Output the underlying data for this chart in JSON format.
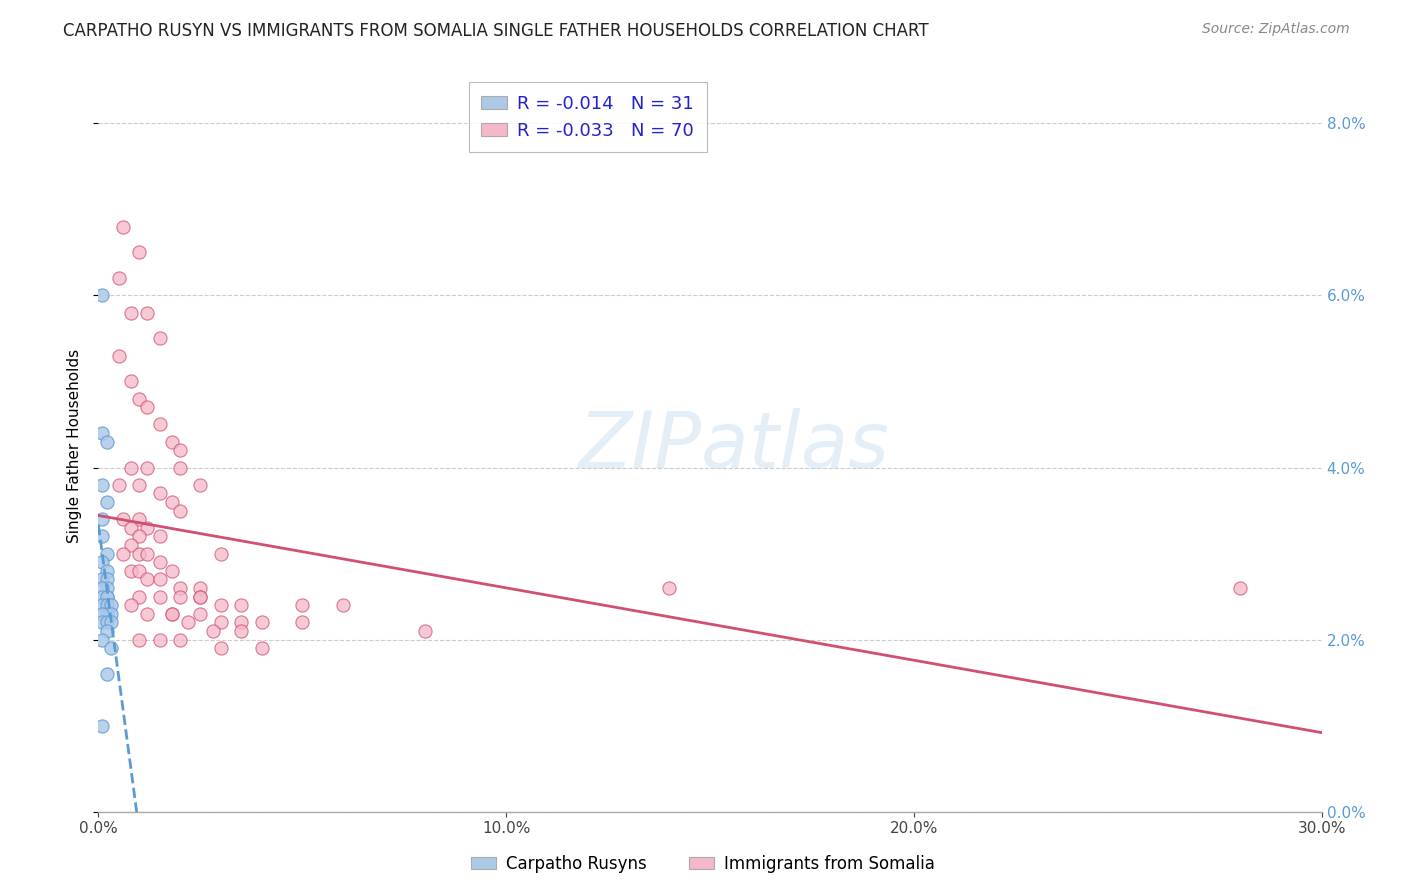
{
  "title": "CARPATHO RUSYN VS IMMIGRANTS FROM SOMALIA SINGLE FATHER HOUSEHOLDS CORRELATION CHART",
  "source": "Source: ZipAtlas.com",
  "ylabel": "Single Father Households",
  "legend_label1": "Carpatho Rusyns",
  "legend_label2": "Immigrants from Somalia",
  "r1": -0.014,
  "n1": 31,
  "r2": -0.033,
  "n2": 70,
  "color1": "#adc9e8",
  "color2": "#f5b8c8",
  "trendline1_color": "#5b9bd5",
  "trendline2_color": "#d05070",
  "xmin": 0.0,
  "xmax": 0.3,
  "ymin": 0.0,
  "ymax": 0.085,
  "blue_scatter_x": [
    0.001,
    0.001,
    0.002,
    0.001,
    0.002,
    0.001,
    0.001,
    0.002,
    0.001,
    0.002,
    0.001,
    0.002,
    0.002,
    0.001,
    0.002,
    0.001,
    0.002,
    0.001,
    0.002,
    0.003,
    0.002,
    0.003,
    0.001,
    0.001,
    0.002,
    0.003,
    0.002,
    0.001,
    0.003,
    0.002,
    0.001
  ],
  "blue_scatter_y": [
    0.06,
    0.044,
    0.043,
    0.038,
    0.036,
    0.034,
    0.032,
    0.03,
    0.029,
    0.028,
    0.027,
    0.027,
    0.026,
    0.026,
    0.025,
    0.025,
    0.025,
    0.024,
    0.024,
    0.024,
    0.023,
    0.023,
    0.023,
    0.022,
    0.022,
    0.022,
    0.021,
    0.02,
    0.019,
    0.016,
    0.01
  ],
  "pink_scatter_x": [
    0.006,
    0.01,
    0.005,
    0.008,
    0.012,
    0.015,
    0.005,
    0.008,
    0.01,
    0.012,
    0.015,
    0.018,
    0.02,
    0.008,
    0.012,
    0.005,
    0.01,
    0.015,
    0.018,
    0.02,
    0.006,
    0.01,
    0.008,
    0.012,
    0.015,
    0.01,
    0.008,
    0.006,
    0.01,
    0.012,
    0.015,
    0.018,
    0.008,
    0.01,
    0.012,
    0.015,
    0.02,
    0.025,
    0.01,
    0.015,
    0.02,
    0.025,
    0.03,
    0.035,
    0.008,
    0.012,
    0.018,
    0.025,
    0.03,
    0.035,
    0.04,
    0.02,
    0.025,
    0.03,
    0.025,
    0.05,
    0.018,
    0.022,
    0.028,
    0.035,
    0.01,
    0.015,
    0.02,
    0.03,
    0.04,
    0.05,
    0.06,
    0.08,
    0.14,
    0.28
  ],
  "pink_scatter_y": [
    0.068,
    0.065,
    0.062,
    0.058,
    0.058,
    0.055,
    0.053,
    0.05,
    0.048,
    0.047,
    0.045,
    0.043,
    0.042,
    0.04,
    0.04,
    0.038,
    0.038,
    0.037,
    0.036,
    0.035,
    0.034,
    0.034,
    0.033,
    0.033,
    0.032,
    0.032,
    0.031,
    0.03,
    0.03,
    0.03,
    0.029,
    0.028,
    0.028,
    0.028,
    0.027,
    0.027,
    0.026,
    0.026,
    0.025,
    0.025,
    0.025,
    0.025,
    0.024,
    0.024,
    0.024,
    0.023,
    0.023,
    0.023,
    0.022,
    0.022,
    0.022,
    0.04,
    0.038,
    0.03,
    0.025,
    0.024,
    0.023,
    0.022,
    0.021,
    0.021,
    0.02,
    0.02,
    0.02,
    0.019,
    0.019,
    0.022,
    0.024,
    0.021,
    0.026,
    0.026
  ]
}
